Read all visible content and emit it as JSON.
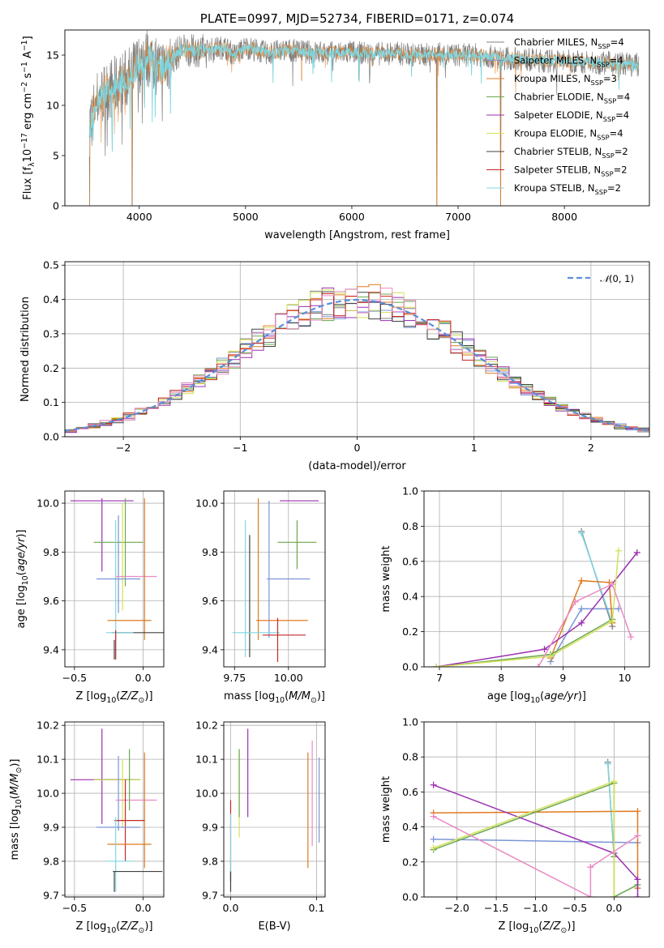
{
  "chart_data": [
    {
      "id": "spectrum",
      "type": "line",
      "title": "PLATE=0997, MJD=52734, FIBERID=0171, z=0.074",
      "xlabel": "wavelength [Angstrom, rest frame]",
      "ylabel": "Flux [fλ10⁻¹⁷ erg cm⁻² s⁻¹ A⁻¹]",
      "xlim": [
        3300,
        8800
      ],
      "ylim": [
        0,
        17.5
      ],
      "xticks": [
        "4000",
        "5000",
        "6000",
        "7000",
        "8000"
      ],
      "xtick_values": [
        4000,
        5000,
        6000,
        7000,
        8000
      ],
      "yticks": [
        "0",
        "5",
        "10",
        "15"
      ],
      "ytick_values": [
        0,
        5,
        10,
        15
      ],
      "grid": false,
      "legend_position": "right",
      "observed_color": "#808080",
      "model_color": "#7fd6e0",
      "envelope": {
        "x": [
          3530,
          3600,
          3700,
          3800,
          3900,
          4000,
          4100,
          4200,
          4300,
          4400,
          4500,
          4600,
          4700,
          4800,
          4900,
          5000,
          5200,
          5400,
          5600,
          5800,
          6000,
          6200,
          6400,
          6600,
          6800,
          7000,
          7200,
          7400,
          7600,
          7800,
          8000,
          8200,
          8400,
          8600,
          8700
        ],
        "y": [
          8.0,
          10.5,
          11.5,
          12.0,
          12.8,
          14.2,
          14.8,
          13.6,
          14.6,
          15.6,
          15.4,
          15.5,
          15.6,
          15.8,
          15.0,
          15.8,
          15.2,
          15.5,
          15.3,
          15.2,
          15.3,
          15.1,
          15.2,
          15.0,
          15.1,
          15.0,
          15.0,
          14.7,
          14.6,
          14.4,
          14.4,
          14.3,
          14.2,
          14.1,
          14.0
        ]
      },
      "absorption_dips": [
        {
          "x": 3533,
          "y": 0
        },
        {
          "x": 3934,
          "y": 0
        },
        {
          "x": 6800,
          "y": 0
        },
        {
          "x": 7400,
          "y": 0
        }
      ],
      "legend": [
        {
          "label": "Chabrier MILES, N",
          "sub": "SSP",
          "suffix": "=4",
          "color": "#808080"
        },
        {
          "label": "Salpeter MILES, N",
          "sub": "SSP",
          "suffix": "=4",
          "color": "#7b95d4"
        },
        {
          "label": "Kroupa MILES, N",
          "sub": "SSP",
          "suffix": "=3",
          "color": "#e07b20"
        },
        {
          "label": "Chabrier ELODIE, N",
          "sub": "SSP",
          "suffix": "=4",
          "color": "#6aa84f"
        },
        {
          "label": "Salpeter ELODIE, N",
          "sub": "SSP",
          "suffix": "=4",
          "color": "#9b30b0"
        },
        {
          "label": "Kroupa ELODIE, N",
          "sub": "SSP",
          "suffix": "=4",
          "color": "#d4e157"
        },
        {
          "label": "Chabrier STELIB, N",
          "sub": "SSP",
          "suffix": "=2",
          "color": "#404040"
        },
        {
          "label": "Salpeter STELIB, N",
          "sub": "SSP",
          "suffix": "=2",
          "color": "#c62828"
        },
        {
          "label": "Kroupa STELIB, N",
          "sub": "SSP",
          "suffix": "=2",
          "color": "#7fd6e0"
        }
      ]
    },
    {
      "id": "residuals",
      "type": "histogram",
      "xlabel": "(data-model)/error",
      "ylabel": "Normed distribution",
      "xlim": [
        -2.5,
        2.5
      ],
      "ylim": [
        0,
        0.51
      ],
      "xticks": [
        "−2",
        "−1",
        "0",
        "1",
        "2"
      ],
      "xtick_values": [
        -2,
        -1,
        0,
        1,
        2
      ],
      "yticks": [
        "0.0",
        "0.1",
        "0.2",
        "0.3",
        "0.4",
        "0.5"
      ],
      "ytick_values": [
        0,
        0.1,
        0.2,
        0.3,
        0.4,
        0.5
      ],
      "grid": true,
      "legend": [
        {
          "label": "𝒩(0, 1)",
          "color": "#5b8fd9",
          "style": "dashed"
        }
      ],
      "legend_position": "top-right",
      "bin_width": 0.1,
      "series_colors": [
        "#808080",
        "#7b95d4",
        "#e07b20",
        "#6aa84f",
        "#9b30b0",
        "#d4e157",
        "#404040",
        "#c62828",
        "#e88bc4"
      ]
    },
    {
      "id": "age-vs-z",
      "type": "errorbar",
      "xlabel": "Z [log₁₀(Z/Z⊙)]",
      "ylabel": "age  [log₁₀(age/yr)]",
      "xlim": [
        -0.57,
        0.15
      ],
      "ylim": [
        9.33,
        10.05
      ],
      "xticks": [
        "−0.5",
        "0.0"
      ],
      "xtick_values": [
        -0.5,
        0.0
      ],
      "yticks": [
        "9.4",
        "9.6",
        "9.8",
        "10.0"
      ],
      "ytick_values": [
        9.4,
        9.6,
        9.8,
        10.0
      ],
      "grid": true,
      "points": [
        {
          "x": -0.3,
          "xerr": 0.23,
          "y": 10.01,
          "yerr": 0.0,
          "color": "#9b30b0"
        },
        {
          "x": -0.3,
          "xerr": 0.0,
          "y": 9.87,
          "yerr": 0.15,
          "color": "#9b30b0"
        },
        {
          "x": -0.18,
          "xerr": 0.18,
          "y": 9.84,
          "yerr": 0.0,
          "color": "#6aa84f"
        },
        {
          "x": -0.13,
          "xerr": 0.0,
          "y": 9.84,
          "yerr": 0.18,
          "color": "#6aa84f"
        },
        {
          "x": -0.15,
          "xerr": 0.0,
          "y": 9.78,
          "yerr": 0.22,
          "color": "#d4e157"
        },
        {
          "x": -0.2,
          "xerr": 0.0,
          "y": 9.65,
          "yerr": 0.28,
          "color": "#7fd6e0"
        },
        {
          "x": -0.18,
          "xerr": 0.0,
          "y": 9.75,
          "yerr": 0.2,
          "color": "#7b95d4"
        },
        {
          "x": -0.18,
          "xerr": 0.16,
          "y": 9.69,
          "yerr": 0.0,
          "color": "#7b95d4"
        },
        {
          "x": -0.05,
          "xerr": 0.15,
          "y": 9.7,
          "yerr": 0.0,
          "color": "#e88bc4"
        },
        {
          "x": 0.01,
          "xerr": 0.0,
          "y": 9.73,
          "yerr": 0.29,
          "color": "#e07b20"
        },
        {
          "x": -0.1,
          "xerr": 0.16,
          "y": 9.52,
          "yerr": 0.0,
          "color": "#e07b20"
        },
        {
          "x": -0.04,
          "xerr": 0.19,
          "y": 9.47,
          "yerr": 0.0,
          "color": "#404040"
        },
        {
          "x": -0.17,
          "xerr": 0.1,
          "y": 9.47,
          "yerr": 0.0,
          "color": "#7fd6e0"
        },
        {
          "x": -0.2,
          "xerr": 0.0,
          "y": 9.42,
          "yerr": 0.06,
          "color": "#c62828"
        },
        {
          "x": -0.21,
          "xerr": 0.0,
          "y": 9.4,
          "yerr": 0.04,
          "color": "#404040"
        }
      ]
    },
    {
      "id": "age-vs-mass",
      "type": "errorbar",
      "xlabel": "mass [log₁₀(M/M⊙)]",
      "ylabel": "",
      "xlim": [
        9.7,
        10.17
      ],
      "ylim": [
        9.33,
        10.05
      ],
      "xticks": [
        "9.75",
        "10.00"
      ],
      "xtick_values": [
        9.75,
        10.0
      ],
      "yticks": [
        "9.4",
        "9.6",
        "9.8",
        "10.0"
      ],
      "ytick_values": [
        9.4,
        9.6,
        9.8,
        10.0
      ],
      "grid": true,
      "points": [
        {
          "x": 10.05,
          "xerr": 0.09,
          "y": 10.01,
          "yerr": 0.0,
          "color": "#9b30b0"
        },
        {
          "x": 9.86,
          "xerr": 0.0,
          "y": 9.73,
          "yerr": 0.29,
          "color": "#e07b20"
        },
        {
          "x": 9.91,
          "xerr": 0.0,
          "y": 9.73,
          "yerr": 0.28,
          "color": "#7b95d4"
        },
        {
          "x": 10.04,
          "xerr": 0.09,
          "y": 9.84,
          "yerr": 0.0,
          "color": "#6aa84f"
        },
        {
          "x": 10.04,
          "xerr": 0.0,
          "y": 9.83,
          "yerr": 0.1,
          "color": "#6aa84f"
        },
        {
          "x": 9.8,
          "xerr": 0.0,
          "y": 9.65,
          "yerr": 0.28,
          "color": "#7fd6e0"
        },
        {
          "x": 9.82,
          "xerr": 0.0,
          "y": 9.62,
          "yerr": 0.25,
          "color": "#404040"
        },
        {
          "x": 10.0,
          "xerr": 0.1,
          "y": 9.69,
          "yerr": 0.0,
          "color": "#7b95d4"
        },
        {
          "x": 9.97,
          "xerr": 0.12,
          "y": 9.52,
          "yerr": 0.0,
          "color": "#e07b20"
        },
        {
          "x": 9.85,
          "xerr": 0.11,
          "y": 9.47,
          "yerr": 0.0,
          "color": "#7fd6e0"
        },
        {
          "x": 9.98,
          "xerr": 0.1,
          "y": 9.46,
          "yerr": 0.0,
          "color": "#c62828"
        },
        {
          "x": 9.95,
          "xerr": 0.0,
          "y": 9.44,
          "yerr": 0.09,
          "color": "#c62828"
        }
      ]
    },
    {
      "id": "weight-vs-age",
      "type": "line",
      "xlabel": "age  [log₁₀(age/yr)]",
      "ylabel": "mass weight",
      "xlim": [
        6.75,
        10.4
      ],
      "ylim": [
        0.0,
        1.0
      ],
      "xticks": [
        "7",
        "8",
        "9",
        "10"
      ],
      "xtick_values": [
        7,
        8,
        9,
        10
      ],
      "yticks": [
        "0.0",
        "0.2",
        "0.4",
        "0.6",
        "0.8",
        "1.0"
      ],
      "ytick_values": [
        0,
        0.2,
        0.4,
        0.6,
        0.8,
        1.0
      ],
      "grid": true,
      "series": [
        {
          "color": "#808080",
          "x": [
            9.3,
            9.8
          ],
          "y": [
            0.77,
            0.23
          ]
        },
        {
          "color": "#7fd6e0",
          "x": [
            9.3,
            9.8
          ],
          "y": [
            0.76,
            0.25
          ]
        },
        {
          "color": "#7b95d4",
          "x": [
            8.8,
            9.3,
            9.9
          ],
          "y": [
            0.03,
            0.33,
            0.33
          ]
        },
        {
          "color": "#e07b20",
          "x": [
            8.8,
            9.3,
            9.75,
            9.8
          ],
          "y": [
            0.05,
            0.49,
            0.48,
            0.25
          ]
        },
        {
          "color": "#6aa84f",
          "x": [
            6.95,
            8.8,
            9.8
          ],
          "y": [
            0.0,
            0.07,
            0.27
          ]
        },
        {
          "color": "#9b30b0",
          "x": [
            6.95,
            8.7,
            9.3,
            10.2
          ],
          "y": [
            0.0,
            0.1,
            0.25,
            0.65
          ]
        },
        {
          "color": "#d4e157",
          "x": [
            6.95,
            8.8,
            9.8,
            9.9
          ],
          "y": [
            0.0,
            0.06,
            0.26,
            0.66
          ]
        },
        {
          "color": "#e88bc4",
          "x": [
            8.6,
            9.2,
            9.8,
            10.1
          ],
          "y": [
            0.0,
            0.37,
            0.47,
            0.17
          ]
        }
      ]
    },
    {
      "id": "mass-vs-z",
      "type": "errorbar",
      "xlabel": "Z [log₁₀(Z/Z⊙)]",
      "ylabel": "mass [log₁₀(M/M⊙)]",
      "xlim": [
        -0.57,
        0.15
      ],
      "ylim": [
        9.695,
        10.21
      ],
      "xticks": [
        "−0.5",
        "0.0"
      ],
      "xtick_values": [
        -0.5,
        0.0
      ],
      "yticks": [
        "9.7",
        "9.8",
        "9.9",
        "10.0",
        "10.1",
        "10.2"
      ],
      "ytick_values": [
        9.7,
        9.8,
        9.9,
        10.0,
        10.1,
        10.2
      ],
      "grid": true,
      "points": [
        {
          "x": -0.3,
          "xerr": 0.0,
          "y": 10.05,
          "yerr": 0.14,
          "color": "#9b30b0"
        },
        {
          "x": -0.3,
          "xerr": 0.23,
          "y": 10.04,
          "yerr": 0.0,
          "color": "#9b30b0"
        },
        {
          "x": -0.19,
          "xerr": 0.17,
          "y": 10.04,
          "yerr": 0.0,
          "color": "#404040"
        },
        {
          "x": -0.19,
          "xerr": 0.17,
          "y": 10.04,
          "yerr": 0.0,
          "color": "#d4e157"
        },
        {
          "x": -0.1,
          "xerr": 0.0,
          "y": 10.04,
          "yerr": 0.09,
          "color": "#6aa84f"
        },
        {
          "x": -0.15,
          "xerr": 0.0,
          "y": 10.0,
          "yerr": 0.1,
          "color": "#d4e157"
        },
        {
          "x": -0.18,
          "xerr": 0.0,
          "y": 10.0,
          "yerr": 0.11,
          "color": "#7b95d4"
        },
        {
          "x": -0.05,
          "xerr": 0.15,
          "y": 9.98,
          "yerr": 0.0,
          "color": "#e88bc4"
        },
        {
          "x": 0.01,
          "xerr": 0.0,
          "y": 9.95,
          "yerr": 0.17,
          "color": "#e07b20"
        },
        {
          "x": -0.1,
          "xerr": 0.11,
          "y": 9.92,
          "yerr": 0.0,
          "color": "#c62828"
        },
        {
          "x": -0.13,
          "xerr": 0.0,
          "y": 9.92,
          "yerr": 0.12,
          "color": "#c62828"
        },
        {
          "x": -0.18,
          "xerr": 0.16,
          "y": 9.9,
          "yerr": 0.0,
          "color": "#7b95d4"
        },
        {
          "x": -0.1,
          "xerr": 0.16,
          "y": 9.85,
          "yerr": 0.0,
          "color": "#e07b20"
        },
        {
          "x": -0.2,
          "xerr": 0.0,
          "y": 9.82,
          "yerr": 0.11,
          "color": "#7fd6e0"
        },
        {
          "x": -0.17,
          "xerr": 0.1,
          "y": 9.8,
          "yerr": 0.0,
          "color": "#7fd6e0"
        },
        {
          "x": -0.04,
          "xerr": 0.18,
          "y": 9.77,
          "yerr": 0.0,
          "color": "#404040"
        },
        {
          "x": -0.21,
          "xerr": 0.0,
          "y": 9.74,
          "yerr": 0.03,
          "color": "#404040"
        }
      ]
    },
    {
      "id": "mass-vs-ebv",
      "type": "errorbar",
      "xlabel": "E(B-V)",
      "ylabel": "",
      "xlim": [
        -0.008,
        0.11
      ],
      "ylim": [
        9.695,
        10.21
      ],
      "xticks": [
        "0.0",
        "0.1"
      ],
      "xtick_values": [
        0.0,
        0.1
      ],
      "yticks": [
        "9.7",
        "9.8",
        "9.9",
        "10.0",
        "10.1",
        "10.2"
      ],
      "ytick_values": [
        9.7,
        9.8,
        9.9,
        10.0,
        10.1,
        10.2
      ],
      "grid": true,
      "points": [
        {
          "x": 0.0,
          "xerr": 0.0,
          "y": 9.86,
          "yerr": 0.12,
          "color": "#c62828"
        },
        {
          "x": 0.0,
          "xerr": 0.0,
          "y": 9.84,
          "yerr": 0.1,
          "color": "#7fd6e0"
        },
        {
          "x": 0.0,
          "xerr": 0.0,
          "y": 9.74,
          "yerr": 0.03,
          "color": "#404040"
        },
        {
          "x": 0.01,
          "xerr": 0.0,
          "y": 10.0,
          "yerr": 0.13,
          "color": "#d4e157"
        },
        {
          "x": 0.01,
          "xerr": 0.0,
          "y": 10.03,
          "yerr": 0.1,
          "color": "#6aa84f"
        },
        {
          "x": 0.02,
          "xerr": 0.0,
          "y": 10.06,
          "yerr": 0.13,
          "color": "#9b30b0"
        },
        {
          "x": 0.09,
          "xerr": 0.0,
          "y": 9.95,
          "yerr": 0.17,
          "color": "#e07b20"
        },
        {
          "x": 0.095,
          "xerr": 0.0,
          "y": 10.0,
          "yerr": 0.155,
          "color": "#e88bc4"
        },
        {
          "x": 0.103,
          "xerr": 0.0,
          "y": 9.98,
          "yerr": 0.125,
          "color": "#7b95d4"
        }
      ]
    },
    {
      "id": "weight-vs-z",
      "type": "line",
      "xlabel": "Z [log₁₀(Z/Z⊙)]",
      "ylabel": "mass weight",
      "xlim": [
        -2.42,
        0.45
      ],
      "ylim": [
        0.0,
        1.0
      ],
      "xticks": [
        "−2.0",
        "−1.5",
        "−1.0",
        "−0.5",
        "0.0"
      ],
      "xtick_values": [
        -2.0,
        -1.5,
        -1.0,
        -0.5,
        0.0
      ],
      "yticks": [
        "0.0",
        "0.2",
        "0.4",
        "0.6",
        "0.8",
        "1.0"
      ],
      "ytick_values": [
        0,
        0.2,
        0.4,
        0.6,
        0.8,
        1.0
      ],
      "grid": true,
      "series": [
        {
          "color": "#808080",
          "x": [
            -0.08,
            0.0
          ],
          "y": [
            0.77,
            0.23
          ]
        },
        {
          "color": "#7fd6e0",
          "x": [
            -0.08,
            0.0
          ],
          "y": [
            0.76,
            0.25
          ]
        },
        {
          "color": "#7b95d4",
          "x": [
            -2.3,
            0.3
          ],
          "y": [
            0.33,
            0.31
          ]
        },
        {
          "color": "#e07b20",
          "x": [
            -2.3,
            0.3,
            0.3
          ],
          "y": [
            0.48,
            0.49,
            0.05
          ]
        },
        {
          "color": "#6aa84f",
          "x": [
            -2.3,
            0.0,
            0.0,
            0.3
          ],
          "y": [
            0.27,
            0.65,
            0.0,
            0.07
          ]
        },
        {
          "color": "#9b30b0",
          "x": [
            -2.3,
            0.0,
            0.3,
            0.3
          ],
          "y": [
            0.64,
            0.25,
            0.1,
            0.0
          ]
        },
        {
          "color": "#d4e157",
          "x": [
            -2.3,
            0.0,
            0.0
          ],
          "y": [
            0.28,
            0.66,
            0.0
          ]
        },
        {
          "color": "#e88bc4",
          "x": [
            -2.3,
            -0.3,
            -0.3,
            -0.3,
            0.3
          ],
          "y": [
            0.46,
            0.0,
            0.17,
            0.17,
            0.35
          ]
        }
      ]
    }
  ]
}
